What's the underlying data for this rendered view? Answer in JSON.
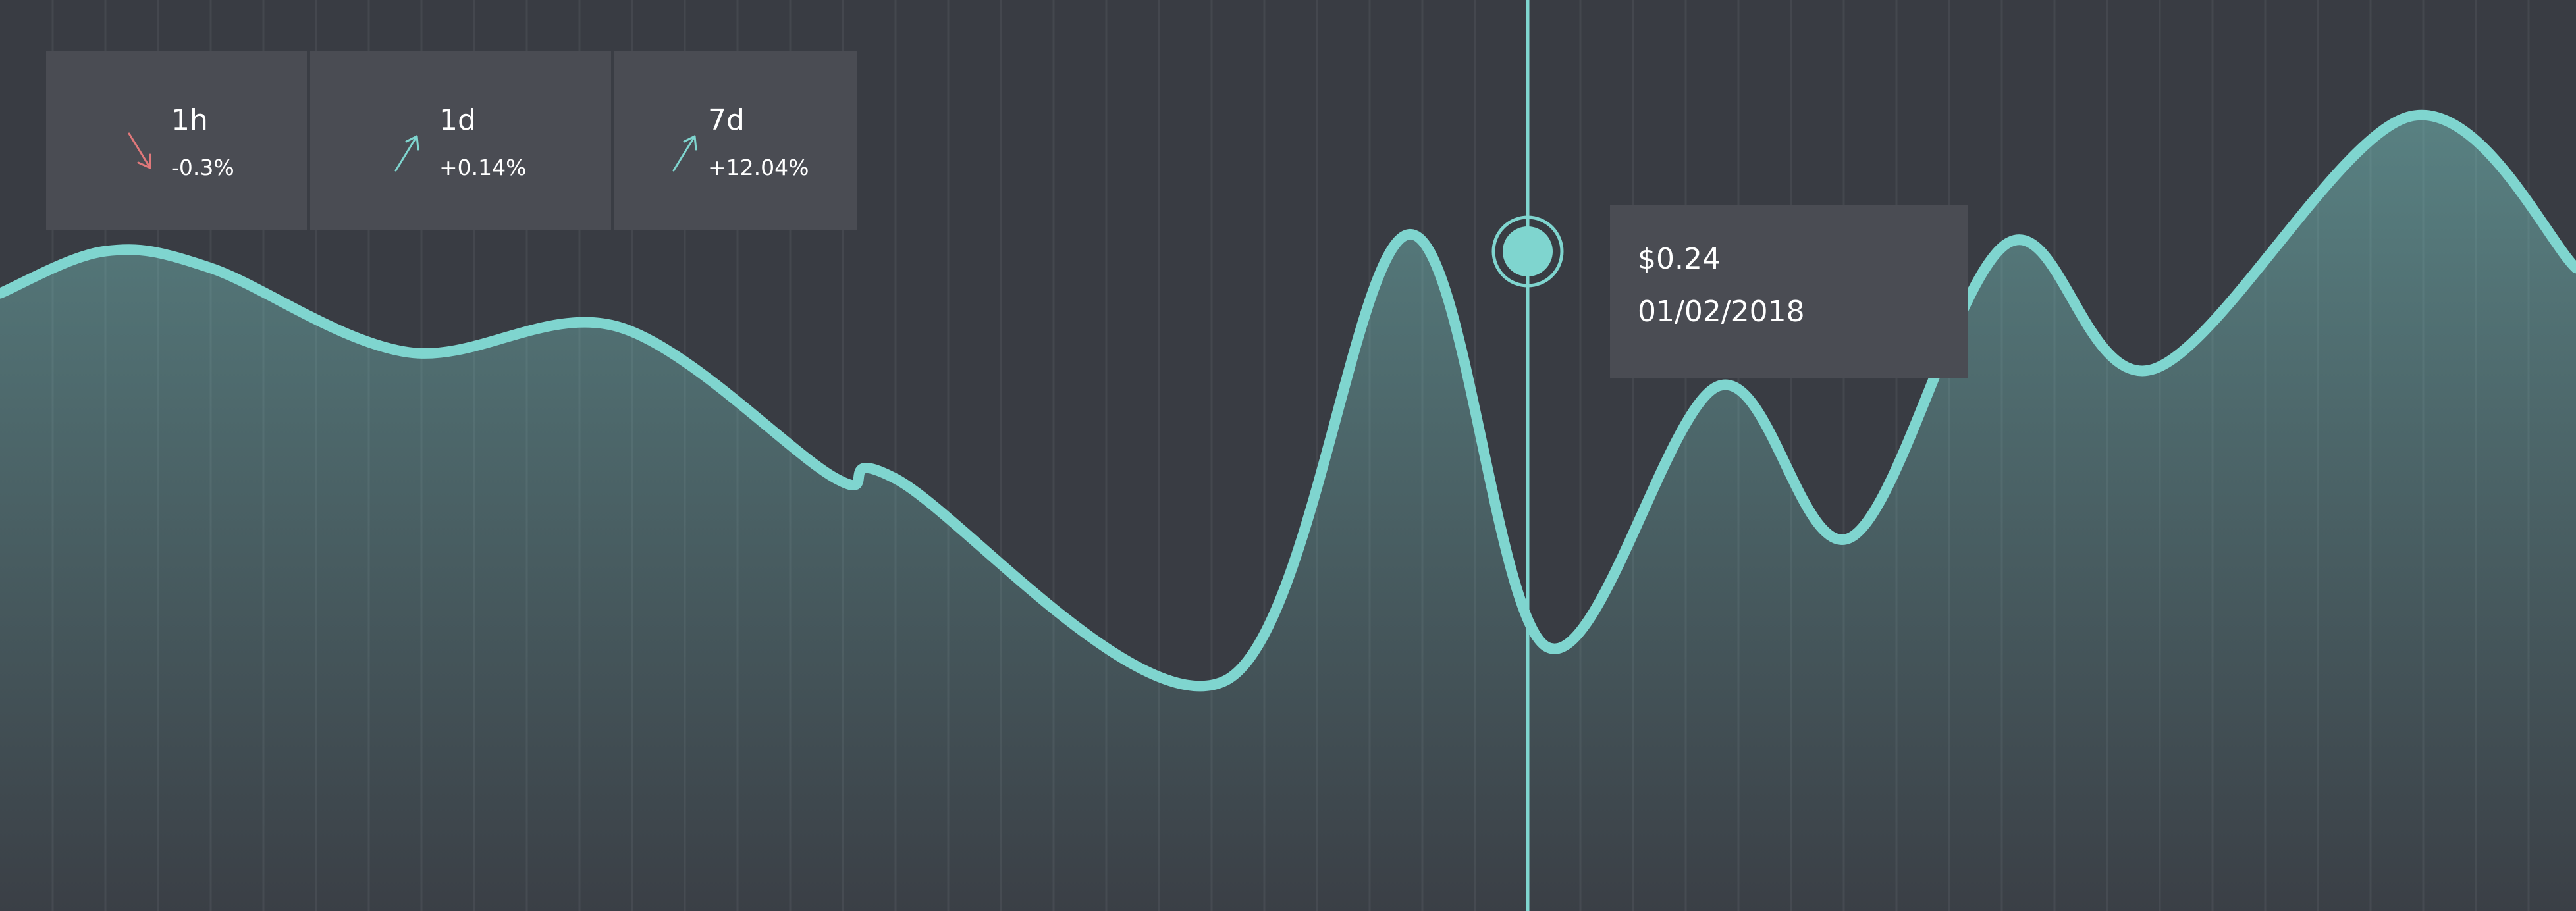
{
  "theme": {
    "background": "#393c43",
    "panel": "#4a4c53",
    "gridline": "#44474e",
    "accent": "#7fd5cf",
    "down": "#e0787a",
    "text": "#ffffff"
  },
  "stats": [
    {
      "period": "1h",
      "change": "-0.3%",
      "direction": "down",
      "icon": "arrow-down-right-icon"
    },
    {
      "period": "1d",
      "change": "+0.14%",
      "direction": "up",
      "icon": "arrow-up-right-icon"
    },
    {
      "period": "7d",
      "change": "+12.04%",
      "direction": "up",
      "icon": "arrow-up-right-icon"
    }
  ],
  "tooltip": {
    "price": "$0.24",
    "date": "01/02/2018"
  },
  "chart_data": {
    "type": "area",
    "grid": "vertical",
    "title": "",
    "xlabel": "",
    "ylabel": "",
    "ylim": [
      0,
      1
    ],
    "values": [
      0.73,
      0.78,
      0.76,
      0.66,
      0.69,
      0.51,
      0.51,
      0.27,
      0.8,
      0.31,
      0.62,
      0.44,
      0.79,
      0.64,
      0.94,
      0.76
    ],
    "highlight_index": 9
  }
}
